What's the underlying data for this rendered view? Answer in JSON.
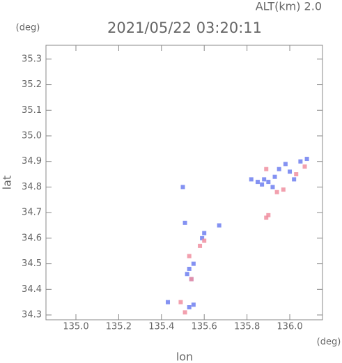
{
  "chart_data": {
    "type": "scatter",
    "title": "2021/05/22 03:20:11",
    "altitude_label": "ALT(km) 2.0",
    "x_label": "lon",
    "y_label": "lat",
    "x_unit": "(deg)",
    "y_unit": "(deg)",
    "xlim": [
      134.86,
      136.153
    ],
    "ylim": [
      34.281,
      35.354
    ],
    "xticks": [
      {
        "value": 135.0,
        "label": "135.0"
      },
      135.2,
      135.4,
      135.6,
      135.8,
      {
        "value": 136.0,
        "label": "136.0"
      }
    ],
    "yticks": [
      34.3,
      34.4,
      34.5,
      34.6,
      34.7,
      34.8,
      34.9,
      {
        "value": 35.0,
        "label": "35.0"
      },
      35.1,
      35.2,
      35.3
    ],
    "series": [
      {
        "color": "#6f7ff0",
        "x": [
          135.82,
          135.85,
          135.88,
          135.9,
          135.93,
          135.95,
          135.98,
          136.0,
          136.05,
          136.08,
          135.87,
          135.92,
          136.02,
          135.53,
          135.52,
          135.55,
          135.59,
          135.51,
          135.53,
          135.55,
          135.43,
          135.54,
          135.6,
          135.67,
          135.5
        ],
        "values": [
          34.83,
          34.82,
          34.83,
          34.82,
          34.84,
          34.87,
          34.89,
          34.86,
          34.9,
          34.91,
          34.81,
          34.8,
          34.83,
          34.48,
          34.46,
          34.5,
          34.6,
          34.66,
          34.33,
          34.34,
          34.35,
          34.44,
          34.62,
          34.65,
          34.8
        ]
      },
      {
        "color": "#f08fa0",
        "x": [
          135.89,
          135.94,
          135.97,
          136.03,
          136.07,
          135.9,
          135.89,
          135.6,
          135.58,
          135.53,
          135.54,
          135.51,
          135.49
        ],
        "values": [
          34.87,
          34.78,
          34.79,
          34.85,
          34.88,
          34.69,
          34.68,
          34.59,
          34.57,
          34.53,
          34.44,
          34.31,
          34.35
        ]
      }
    ]
  }
}
